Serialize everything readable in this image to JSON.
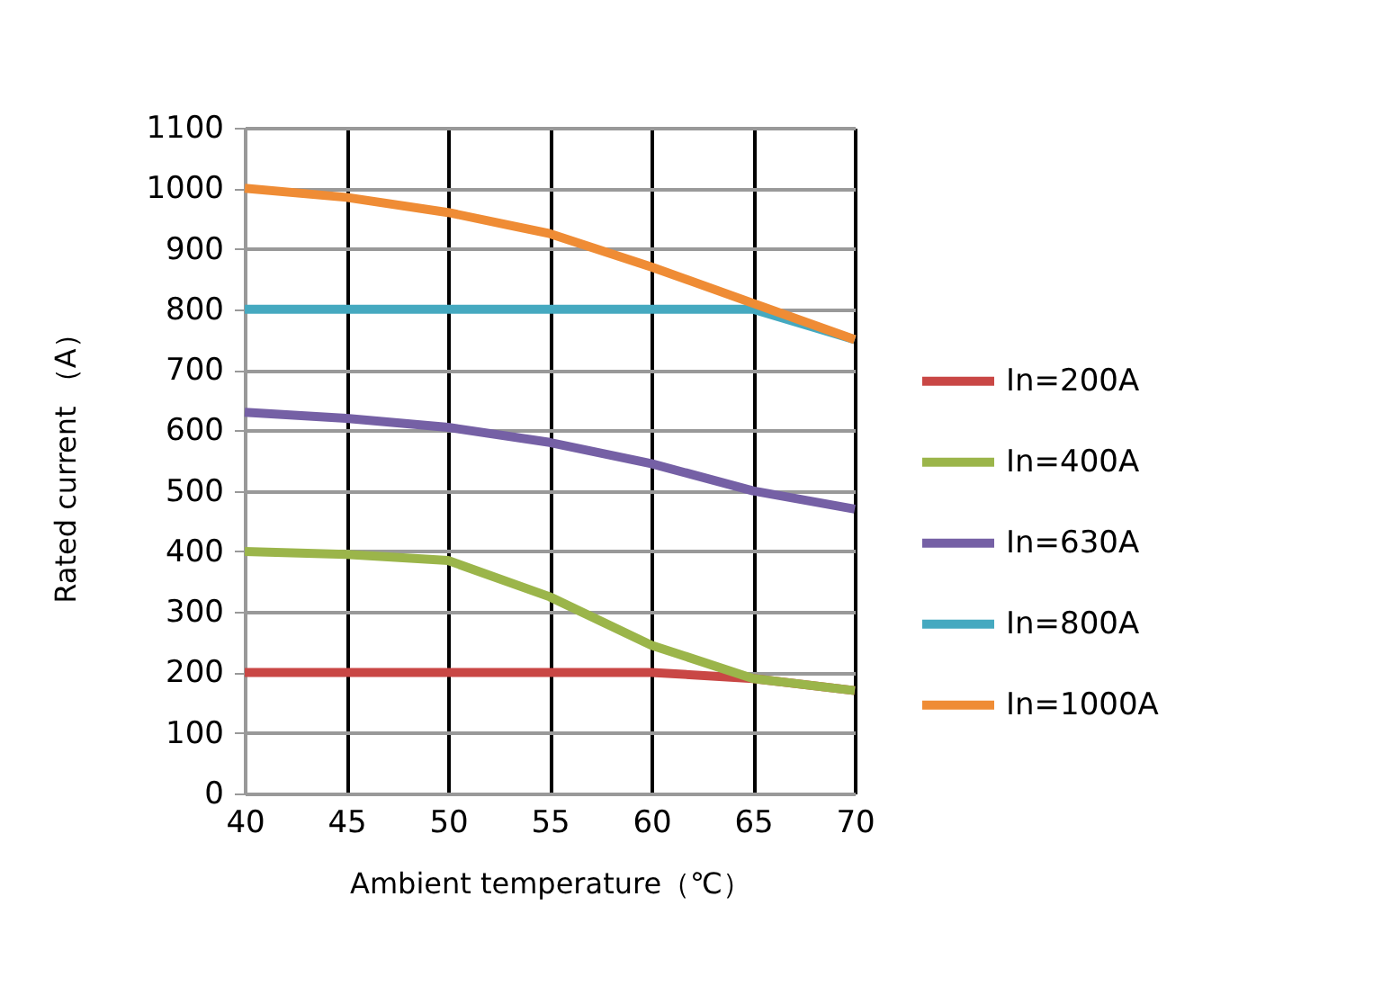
{
  "chart_data": {
    "type": "line",
    "xlabel": "Ambient temperature（℃）",
    "ylabel": "Rated current （A）",
    "x": [
      40,
      45,
      50,
      55,
      60,
      65,
      70
    ],
    "series": [
      {
        "name": "In=200A",
        "color": "#c94745",
        "values": [
          200,
          200,
          200,
          200,
          200,
          190,
          170
        ]
      },
      {
        "name": "In=400A",
        "color": "#9bb54a",
        "values": [
          400,
          395,
          385,
          325,
          245,
          190,
          170
        ]
      },
      {
        "name": "In=630A",
        "color": "#7560a5",
        "values": [
          630,
          620,
          605,
          580,
          545,
          500,
          470
        ]
      },
      {
        "name": "In=800A",
        "color": "#45a9c0",
        "values": [
          800,
          800,
          800,
          800,
          800,
          800,
          750
        ]
      },
      {
        "name": "In=1000A",
        "color": "#ef8c35",
        "values": [
          1000,
          985,
          960,
          925,
          870,
          810,
          750
        ]
      }
    ],
    "xlim": [
      40,
      70
    ],
    "xticks": [
      40,
      45,
      50,
      55,
      60,
      65,
      70
    ],
    "ylim": [
      0,
      1100
    ],
    "yticks": [
      0,
      100,
      200,
      300,
      400,
      500,
      600,
      700,
      800,
      900,
      1000,
      1100
    ],
    "grid": true,
    "legend": "right",
    "marker": "none",
    "line_style": "solid"
  }
}
